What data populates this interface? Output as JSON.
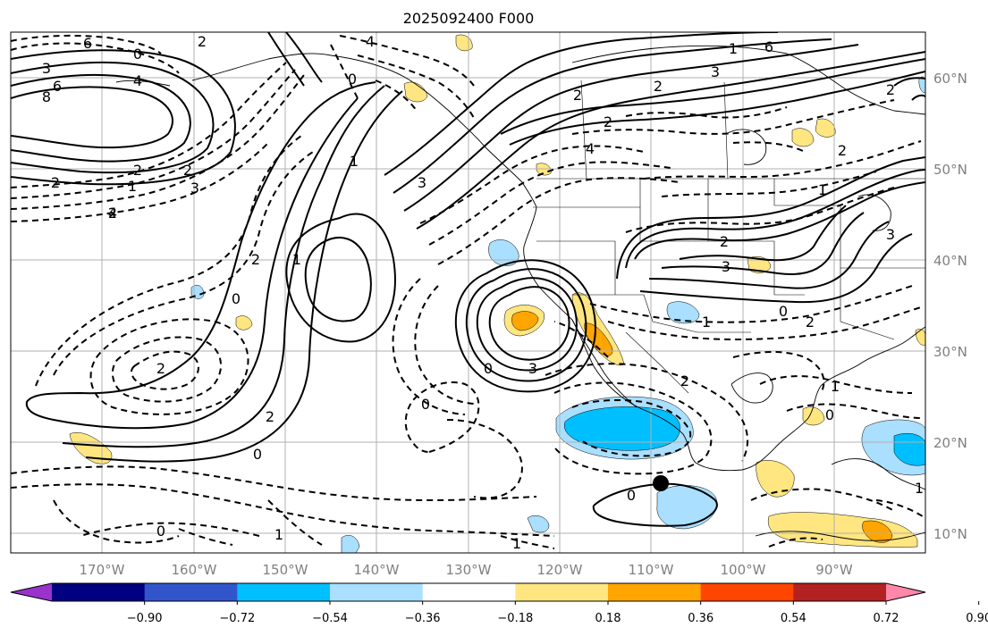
{
  "title": "2025092400 F000",
  "lon_labels": [
    "170°W",
    "160°W",
    "150°W",
    "140°W",
    "130°W",
    "120°W",
    "110°W",
    "100°W",
    "90°W"
  ],
  "lat_labels": [
    "60°N",
    "50°N",
    "40°N",
    "30°N",
    "20°N",
    "10°N"
  ],
  "colorbar": {
    "colors": [
      "#9933cc",
      "#000080",
      "#3355cc",
      "#00bfff",
      "#aadfff",
      "#ffffff",
      "#ffe680",
      "#ffa500",
      "#ff4500",
      "#b22222",
      "#ff88aa"
    ],
    "tick_labels": [
      "−0.90",
      "−0.72",
      "−0.54",
      "−0.36",
      "−0.18",
      "0.18",
      "0.36",
      "0.54",
      "0.72",
      "0.90"
    ]
  },
  "contour_labels": [
    "6",
    "0",
    "2",
    "3",
    "4",
    "6",
    "8",
    "2",
    "2",
    "1",
    "2",
    "2",
    "3",
    "4",
    "6",
    "1",
    "2",
    "3",
    "4",
    "2",
    "2",
    "0",
    "4",
    "3",
    "1",
    "1",
    "2",
    "0",
    "2",
    "2",
    "3",
    "3",
    "0",
    "2",
    "4",
    "2",
    "0",
    "0",
    "1",
    "0",
    "4",
    "0",
    "1",
    "2",
    "1",
    "2",
    "1",
    "0",
    "2",
    "1",
    "3",
    "0",
    "2",
    "1"
  ],
  "marker": "filled-circle"
}
